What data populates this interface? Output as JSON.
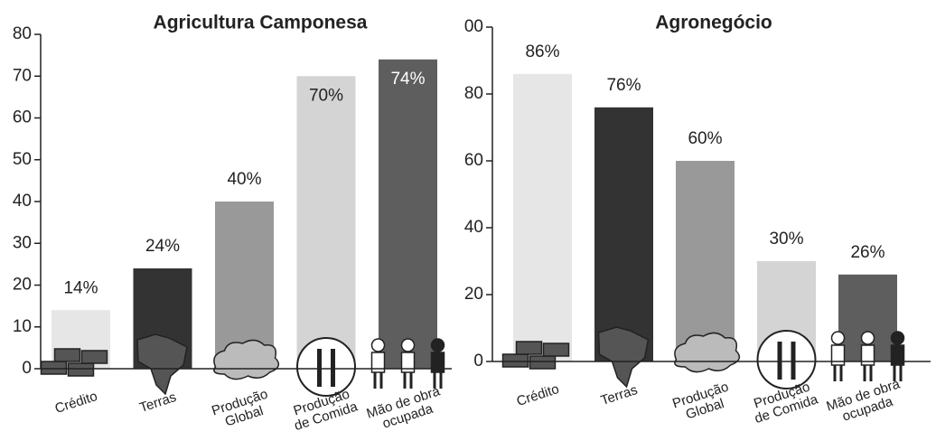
{
  "chart_data": [
    {
      "type": "bar",
      "title": "Agricultura Camponesa",
      "categories": [
        "Crédito",
        "Terras",
        "Produção\nGlobal",
        "Produção\nde Comida",
        "Mão de obra\nocupada"
      ],
      "values": [
        14,
        24,
        40,
        70,
        74
      ],
      "value_labels": [
        "14%",
        "24%",
        "40%",
        "70%",
        "74%"
      ],
      "colors": [
        "#e6e6e6",
        "#333333",
        "#999999",
        "#d4d4d4",
        "#5e5e5e"
      ],
      "ylim": [
        0,
        80
      ],
      "yticks": [
        0,
        10,
        20,
        30,
        40,
        50,
        60,
        70,
        80
      ]
    },
    {
      "type": "bar",
      "title": "Agronegócio",
      "categories": [
        "Crédito",
        "Terras",
        "Produção\nGlobal",
        "Produção\nde Comida",
        "Mão de obra\nocupada"
      ],
      "values": [
        86,
        76,
        60,
        30,
        26
      ],
      "value_labels": [
        "86%",
        "76%",
        "60%",
        "30%",
        "26%"
      ],
      "colors": [
        "#e6e6e6",
        "#333333",
        "#999999",
        "#d4d4d4",
        "#5e5e5e"
      ],
      "ylim": [
        0,
        100
      ],
      "yticks": [
        0,
        20,
        40,
        60,
        80,
        {
          "value": 100,
          "label": "00"
        }
      ]
    }
  ]
}
